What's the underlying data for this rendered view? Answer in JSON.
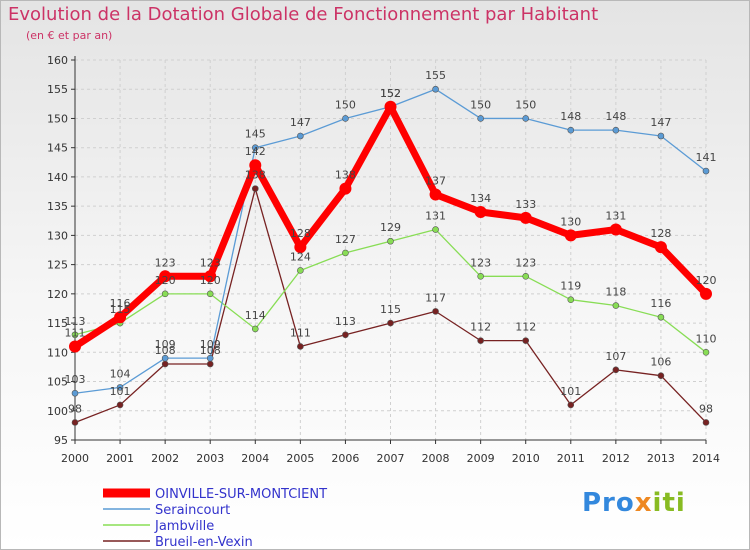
{
  "title": "Evolution de la Dotation Globale de Fonctionnement par Habitant",
  "subtitle": "(en € et par an)",
  "logo": {
    "p1": "Pro",
    "p2": "x",
    "p3": "iti"
  },
  "chart_data": {
    "type": "line",
    "x": [
      "2000",
      "2001",
      "2002",
      "2003",
      "2004",
      "2005",
      "2006",
      "2007",
      "2008",
      "2009",
      "2010",
      "2011",
      "2012",
      "2013",
      "2014"
    ],
    "ylim": [
      95,
      160
    ],
    "yticks": [
      95,
      100,
      105,
      110,
      115,
      120,
      125,
      130,
      135,
      140,
      145,
      150,
      155,
      160
    ],
    "grid": true,
    "legend_position": "bottom-left",
    "series": [
      {
        "name": "OINVILLE-SUR-MONTCIENT",
        "color": "#ff0000",
        "values": [
          111,
          116,
          123,
          123,
          142,
          128,
          138,
          152,
          137,
          134,
          133,
          130,
          131,
          128,
          120
        ]
      },
      {
        "name": "Seraincourt",
        "color": "#5b9bd5",
        "values": [
          103,
          104,
          109,
          109,
          145,
          147,
          150,
          152,
          155,
          150,
          150,
          148,
          148,
          147,
          141
        ]
      },
      {
        "name": "Jambville",
        "color": "#88dd55",
        "values": [
          113,
          115,
          120,
          120,
          114,
          124,
          127,
          129,
          131,
          123,
          123,
          119,
          118,
          116,
          110
        ]
      },
      {
        "name": "Brueil-en-Vexin",
        "color": "#772222",
        "values": [
          98,
          101,
          108,
          108,
          138,
          111,
          113,
          115,
          117,
          112,
          112,
          101,
          107,
          106,
          98
        ]
      }
    ]
  }
}
